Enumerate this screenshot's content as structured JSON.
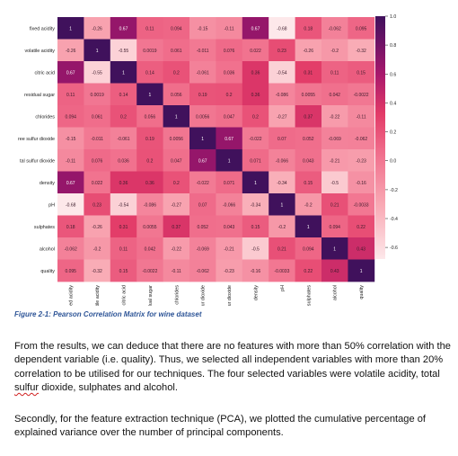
{
  "chart_data": {
    "type": "heatmap",
    "variables": [
      "fixed acidity",
      "volatile acidity",
      "citric acid",
      "residual sugar",
      "chlorides",
      "free sulfur dioxide",
      "total sulfur dioxide",
      "density",
      "pH",
      "sulphates",
      "alcohol",
      "quality"
    ],
    "row_labels_display": [
      "fixed acidity",
      "volatile acidity",
      "citric acid",
      "residual sugar",
      "chlorides",
      "ree sulfur dioxide",
      "tal sulfur dioxide",
      "density",
      "pH",
      "sulphates",
      "alcohol",
      "quality"
    ],
    "col_labels_display": [
      "fixed acidity",
      "volatile acidity",
      "citric acid",
      "residual sugar",
      "chlorides",
      "free sulfur dioxide",
      "total sulfur dioxide",
      "density",
      "pH",
      "sulphates",
      "alcohol",
      "quality"
    ],
    "matrix": [
      [
        1,
        -0.26,
        0.67,
        0.11,
        0.094,
        -0.15,
        -0.11,
        0.67,
        -0.68,
        0.18,
        -0.062,
        0.095
      ],
      [
        -0.26,
        1,
        -0.55,
        0.0019,
        0.061,
        -0.011,
        0.076,
        0.022,
        0.23,
        -0.26,
        -0.2,
        -0.32
      ],
      [
        0.67,
        -0.55,
        1,
        0.14,
        0.2,
        -0.061,
        0.036,
        0.36,
        -0.54,
        0.31,
        0.11,
        0.15
      ],
      [
        0.11,
        0.0019,
        0.14,
        1,
        0.056,
        0.19,
        0.2,
        0.36,
        -0.086,
        0.0055,
        0.042,
        -0.0022
      ],
      [
        0.094,
        0.061,
        0.2,
        0.056,
        1,
        0.0056,
        0.047,
        0.2,
        -0.27,
        0.37,
        -0.22,
        -0.11
      ],
      [
        -0.15,
        -0.011,
        -0.061,
        0.19,
        0.0056,
        1,
        0.67,
        -0.022,
        0.07,
        0.052,
        -0.069,
        -0.062
      ],
      [
        -0.11,
        0.076,
        0.036,
        0.2,
        0.047,
        0.67,
        1,
        0.071,
        -0.066,
        0.043,
        -0.21,
        -0.23
      ],
      [
        0.67,
        0.022,
        0.36,
        0.36,
        0.2,
        -0.022,
        0.071,
        1,
        -0.34,
        0.15,
        -0.5,
        -0.16
      ],
      [
        -0.68,
        0.23,
        -0.54,
        -0.086,
        -0.27,
        0.07,
        -0.066,
        -0.34,
        1,
        -0.2,
        0.21,
        -0.0033
      ],
      [
        0.18,
        -0.26,
        0.31,
        0.0055,
        0.37,
        0.052,
        0.043,
        0.15,
        -0.2,
        1,
        0.094,
        0.22
      ],
      [
        -0.062,
        -0.2,
        0.11,
        0.042,
        -0.22,
        -0.069,
        -0.21,
        -0.5,
        0.21,
        0.094,
        1,
        0.43
      ],
      [
        0.095,
        -0.32,
        0.15,
        -0.0022,
        -0.11,
        -0.062,
        -0.23,
        -0.16,
        -0.0033,
        0.22,
        0.43,
        1
      ]
    ],
    "colorbar_ticks": [
      "1.0",
      "0.8",
      "0.6",
      "0.4",
      "0.2",
      "0.0",
      "-0.2",
      "-0.4",
      "-0.6"
    ],
    "colorbar_range": [
      -0.68,
      1.0
    ],
    "colors": {
      "low": "#fde8ea",
      "mid": "#e4386c",
      "high": "#40115c"
    }
  },
  "caption": "Figure 2-1: Pearson Correlation Matrix for wine dataset",
  "paragraph1": {
    "before": "From the results, we can deduce that there are no features with more than 50% correlation with the dependent variable (i.e. quality). Thus, we selected all independent variables with more than 20% correlation to be utilised for our techniques. The four selected variables were volatile acidity, total ",
    "flagged_word": "sulfur",
    "after": " dioxide, sulphates and alcohol."
  },
  "paragraph2": "Secondly, for the feature extraction technique (PCA), we plotted the cumulative percentage of explained variance over the number of principal components."
}
